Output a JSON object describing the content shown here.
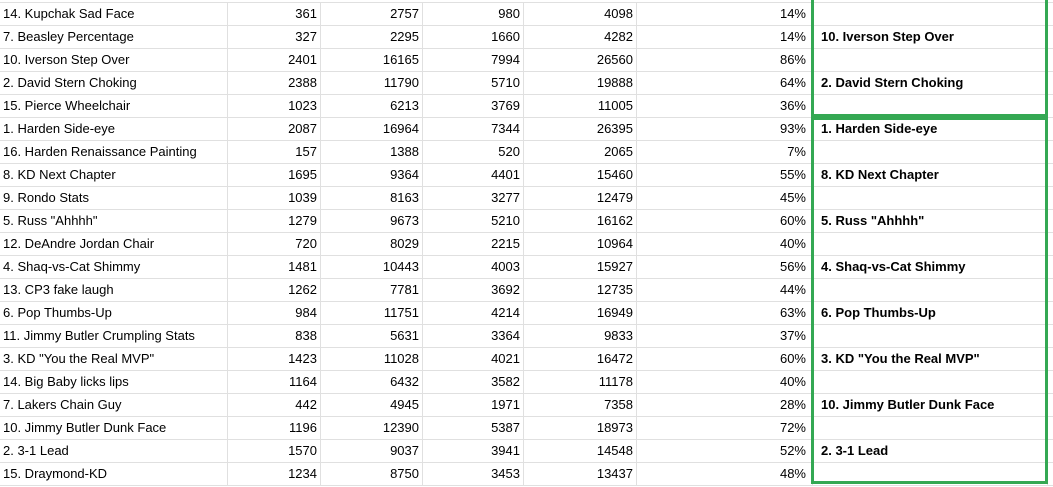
{
  "app": {
    "description": "spreadsheet grid of meme bracket vote tallies",
    "columns": {
      "meme_name": "left-aligned entry name",
      "votes_1": "vote count 1",
      "votes_2": "vote count 2",
      "votes_3": "vote count 3",
      "votes_total": "total votes",
      "vote_percent": "matchup vote share",
      "matchup_winner": "bold winner label inside green selection"
    }
  },
  "colors": {
    "grid_line": "#e0e0e0",
    "selection_border": "#34a853",
    "text": "#000000",
    "background": "#ffffff"
  },
  "table": {
    "rows": [
      {
        "name": "14. Kupchak Sad Face",
        "c1": "361",
        "c2": "2757",
        "c3": "980",
        "c4": "4098",
        "pct": "14%",
        "result": ""
      },
      {
        "name": "7. Beasley Percentage",
        "c1": "327",
        "c2": "2295",
        "c3": "1660",
        "c4": "4282",
        "pct": "14%",
        "result": "10. Iverson Step Over"
      },
      {
        "name": "10. Iverson Step Over",
        "c1": "2401",
        "c2": "16165",
        "c3": "7994",
        "c4": "26560",
        "pct": "86%",
        "result": ""
      },
      {
        "name": "2. David Stern Choking",
        "c1": "2388",
        "c2": "11790",
        "c3": "5710",
        "c4": "19888",
        "pct": "64%",
        "result": "2. David Stern Choking"
      },
      {
        "name": "15. Pierce Wheelchair",
        "c1": "1023",
        "c2": "6213",
        "c3": "3769",
        "c4": "11005",
        "pct": "36%",
        "result": ""
      },
      {
        "name": "1. Harden Side-eye",
        "c1": "2087",
        "c2": "16964",
        "c3": "7344",
        "c4": "26395",
        "pct": "93%",
        "result": "1. Harden Side-eye"
      },
      {
        "name": "16. Harden Renaissance Painting",
        "c1": "157",
        "c2": "1388",
        "c3": "520",
        "c4": "2065",
        "pct": "7%",
        "result": ""
      },
      {
        "name": "8. KD Next Chapter",
        "c1": "1695",
        "c2": "9364",
        "c3": "4401",
        "c4": "15460",
        "pct": "55%",
        "result": "8. KD Next Chapter"
      },
      {
        "name": "9. Rondo Stats",
        "c1": "1039",
        "c2": "8163",
        "c3": "3277",
        "c4": "12479",
        "pct": "45%",
        "result": ""
      },
      {
        "name": "5. Russ \"Ahhhh\"",
        "c1": "1279",
        "c2": "9673",
        "c3": "5210",
        "c4": "16162",
        "pct": "60%",
        "result": "5. Russ \"Ahhhh\""
      },
      {
        "name": "12. DeAndre Jordan Chair",
        "c1": "720",
        "c2": "8029",
        "c3": "2215",
        "c4": "10964",
        "pct": "40%",
        "result": ""
      },
      {
        "name": "4. Shaq-vs-Cat Shimmy",
        "c1": "1481",
        "c2": "10443",
        "c3": "4003",
        "c4": "15927",
        "pct": "56%",
        "result": "4. Shaq-vs-Cat Shimmy"
      },
      {
        "name": "13. CP3 fake laugh",
        "c1": "1262",
        "c2": "7781",
        "c3": "3692",
        "c4": "12735",
        "pct": "44%",
        "result": ""
      },
      {
        "name": "6. Pop Thumbs-Up",
        "c1": "984",
        "c2": "11751",
        "c3": "4214",
        "c4": "16949",
        "pct": "63%",
        "result": "6. Pop Thumbs-Up"
      },
      {
        "name": "11. Jimmy Butler Crumpling Stats",
        "c1": "838",
        "c2": "5631",
        "c3": "3364",
        "c4": "9833",
        "pct": "37%",
        "result": ""
      },
      {
        "name": "3. KD \"You the Real MVP\"",
        "c1": "1423",
        "c2": "11028",
        "c3": "4021",
        "c4": "16472",
        "pct": "60%",
        "result": "3. KD \"You the Real MVP\""
      },
      {
        "name": "14. Big Baby licks lips",
        "c1": "1164",
        "c2": "6432",
        "c3": "3582",
        "c4": "11178",
        "pct": "40%",
        "result": ""
      },
      {
        "name": "7. Lakers Chain Guy",
        "c1": "442",
        "c2": "4945",
        "c3": "1971",
        "c4": "7358",
        "pct": "28%",
        "result": "10. Jimmy Butler Dunk Face"
      },
      {
        "name": "10. Jimmy Butler Dunk Face",
        "c1": "1196",
        "c2": "12390",
        "c3": "5387",
        "c4": "18973",
        "pct": "72%",
        "result": ""
      },
      {
        "name": "2. 3-1 Lead",
        "c1": "1570",
        "c2": "9037",
        "c3": "3941",
        "c4": "14548",
        "pct": "52%",
        "result": "2. 3-1 Lead"
      },
      {
        "name": "15. Draymond-KD",
        "c1": "1234",
        "c2": "8750",
        "c3": "3453",
        "c4": "13437",
        "pct": "48%",
        "result": ""
      }
    ]
  }
}
